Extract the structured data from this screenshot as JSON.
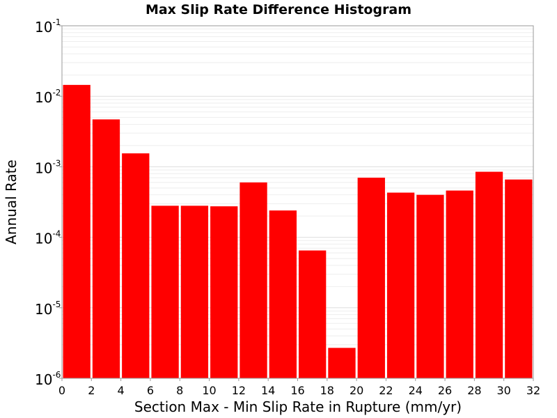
{
  "chart_data": {
    "type": "bar",
    "title": "Max Slip Rate Difference Histogram",
    "xlabel": "Section Max - Min Slip Rate in Rupture (mm/yr)",
    "ylabel": "Annual Rate",
    "xlim": [
      0,
      32
    ],
    "ylim": [
      1e-06,
      0.1
    ],
    "yscale": "log",
    "bin_width": 2,
    "x_ticks": [
      "0",
      "2",
      "4",
      "6",
      "8",
      "10",
      "12",
      "14",
      "16",
      "18",
      "20",
      "22",
      "24",
      "26",
      "28",
      "30",
      "32"
    ],
    "y_ticks": [
      {
        "base": "10",
        "exp": "-1",
        "value": 0.1
      },
      {
        "base": "10",
        "exp": "-2",
        "value": 0.01
      },
      {
        "base": "10",
        "exp": "-3",
        "value": 0.001
      },
      {
        "base": "10",
        "exp": "-4",
        "value": 0.0001
      },
      {
        "base": "10",
        "exp": "-5",
        "value": 1e-05
      },
      {
        "base": "10",
        "exp": "-6",
        "value": 1e-06
      }
    ],
    "bar_color": "#ff0000",
    "grid": true,
    "bins": [
      {
        "x": 1,
        "value": 0.0145
      },
      {
        "x": 3,
        "value": 0.0047
      },
      {
        "x": 5,
        "value": 0.00155
      },
      {
        "x": 7,
        "value": 0.00028
      },
      {
        "x": 9,
        "value": 0.00028
      },
      {
        "x": 11,
        "value": 0.000275
      },
      {
        "x": 13,
        "value": 0.0006
      },
      {
        "x": 15,
        "value": 0.00024
      },
      {
        "x": 17,
        "value": 6.5e-05
      },
      {
        "x": 19,
        "value": 2.7e-06
      },
      {
        "x": 21,
        "value": 0.0007
      },
      {
        "x": 23,
        "value": 0.00043
      },
      {
        "x": 25,
        "value": 0.0004
      },
      {
        "x": 27,
        "value": 0.00046
      },
      {
        "x": 29,
        "value": 0.00085
      },
      {
        "x": 31,
        "value": 0.00066
      }
    ]
  }
}
